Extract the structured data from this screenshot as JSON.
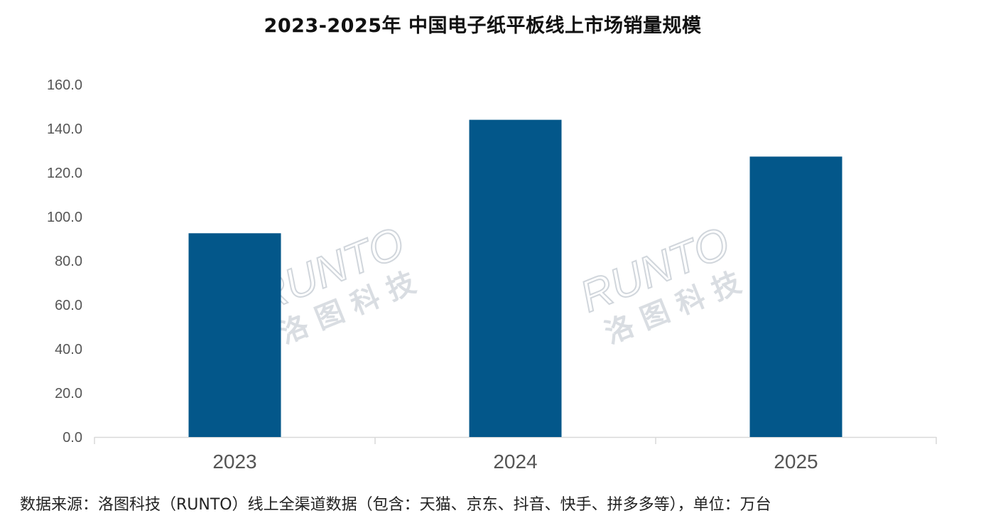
{
  "chart_data": {
    "type": "bar",
    "title": "2023-2025年 中国电子纸平板线上市场销量规模",
    "categories": [
      "2023",
      "2024",
      "2025"
    ],
    "values": [
      92.5,
      144.0,
      127.3
    ],
    "ylim": [
      0,
      160
    ],
    "yticks": [
      "0.0",
      "20.0",
      "40.0",
      "60.0",
      "80.0",
      "100.0",
      "120.0",
      "140.0",
      "160.0"
    ],
    "grid": false,
    "bar_color": "#03578a",
    "xlabel": "",
    "ylabel": ""
  },
  "watermark": {
    "brand": "RUNTO",
    "cn": "洛图科技"
  },
  "source_note": "数据来源：洛图科技（RUNTO）线上全渠道数据（包含：天猫、京东、抖音、快手、拼多多等），单位：万台"
}
